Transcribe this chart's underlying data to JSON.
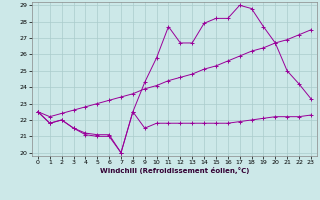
{
  "xlabel": "Windchill (Refroidissement éolien,°C)",
  "bg_color": "#cce8e8",
  "grid_color": "#aacccc",
  "line_color": "#990099",
  "xlim": [
    -0.5,
    23.5
  ],
  "ylim": [
    19.8,
    29.2
  ],
  "xticks": [
    0,
    1,
    2,
    3,
    4,
    5,
    6,
    7,
    8,
    9,
    10,
    11,
    12,
    13,
    14,
    15,
    16,
    17,
    18,
    19,
    20,
    21,
    22,
    23
  ],
  "yticks": [
    20,
    21,
    22,
    23,
    24,
    25,
    26,
    27,
    28,
    29
  ],
  "series1_x": [
    0,
    1,
    2,
    3,
    4,
    5,
    6,
    7,
    8,
    9,
    10,
    11,
    12,
    13,
    14,
    15,
    16,
    17,
    18,
    19,
    20,
    21,
    22,
    23
  ],
  "series1_y": [
    22.5,
    21.8,
    22.0,
    21.5,
    21.1,
    21.0,
    21.0,
    20.0,
    22.5,
    21.5,
    21.8,
    21.8,
    21.8,
    21.8,
    21.8,
    21.8,
    21.8,
    21.9,
    22.0,
    22.1,
    22.2,
    22.2,
    22.2,
    22.3
  ],
  "series2_x": [
    0,
    1,
    2,
    3,
    4,
    5,
    6,
    7,
    8,
    9,
    10,
    11,
    12,
    13,
    14,
    15,
    16,
    17,
    18,
    19,
    20,
    21,
    22,
    23
  ],
  "series2_y": [
    22.5,
    21.8,
    22.0,
    21.5,
    21.2,
    21.1,
    21.1,
    20.0,
    22.5,
    24.3,
    25.8,
    27.7,
    26.7,
    26.7,
    27.9,
    28.2,
    28.2,
    29.0,
    28.8,
    27.7,
    26.7,
    25.0,
    24.2,
    23.3
  ],
  "series3_x": [
    0,
    1,
    2,
    3,
    4,
    5,
    6,
    7,
    8,
    9,
    10,
    11,
    12,
    13,
    14,
    15,
    16,
    17,
    18,
    19,
    20,
    21,
    22,
    23
  ],
  "series3_y": [
    22.5,
    22.2,
    22.4,
    22.6,
    22.8,
    23.0,
    23.2,
    23.4,
    23.6,
    23.9,
    24.1,
    24.4,
    24.6,
    24.8,
    25.1,
    25.3,
    25.6,
    25.9,
    26.2,
    26.4,
    26.7,
    26.9,
    27.2,
    27.5
  ]
}
